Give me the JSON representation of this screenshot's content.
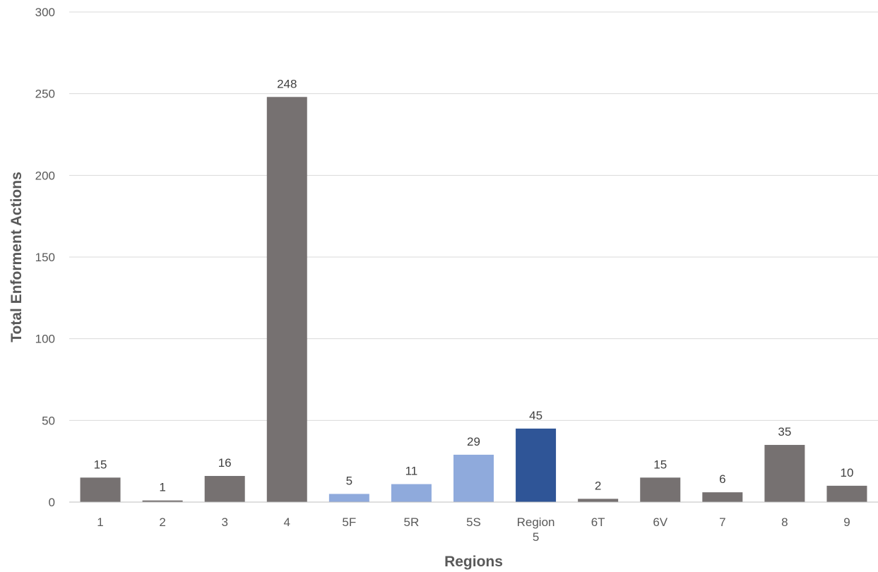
{
  "chart_data": {
    "type": "bar",
    "title": "",
    "xlabel": "Regions",
    "ylabel": "Total Enforment Actions",
    "ylim": [
      0,
      300
    ],
    "yticks": [
      0,
      50,
      100,
      150,
      200,
      250,
      300
    ],
    "grid": true,
    "legend": "none",
    "categories": [
      "1",
      "2",
      "3",
      "4",
      "5F",
      "5R",
      "5S",
      "Region 5",
      "6T",
      "6V",
      "7",
      "8",
      "9"
    ],
    "values": [
      15,
      1,
      16,
      248,
      5,
      11,
      29,
      45,
      2,
      15,
      6,
      35,
      10
    ],
    "bar_colors": [
      "#767171",
      "#767171",
      "#767171",
      "#767171",
      "#8faadc",
      "#8faadc",
      "#8faadc",
      "#2f5597",
      "#767171",
      "#767171",
      "#767171",
      "#767171",
      "#767171"
    ]
  }
}
